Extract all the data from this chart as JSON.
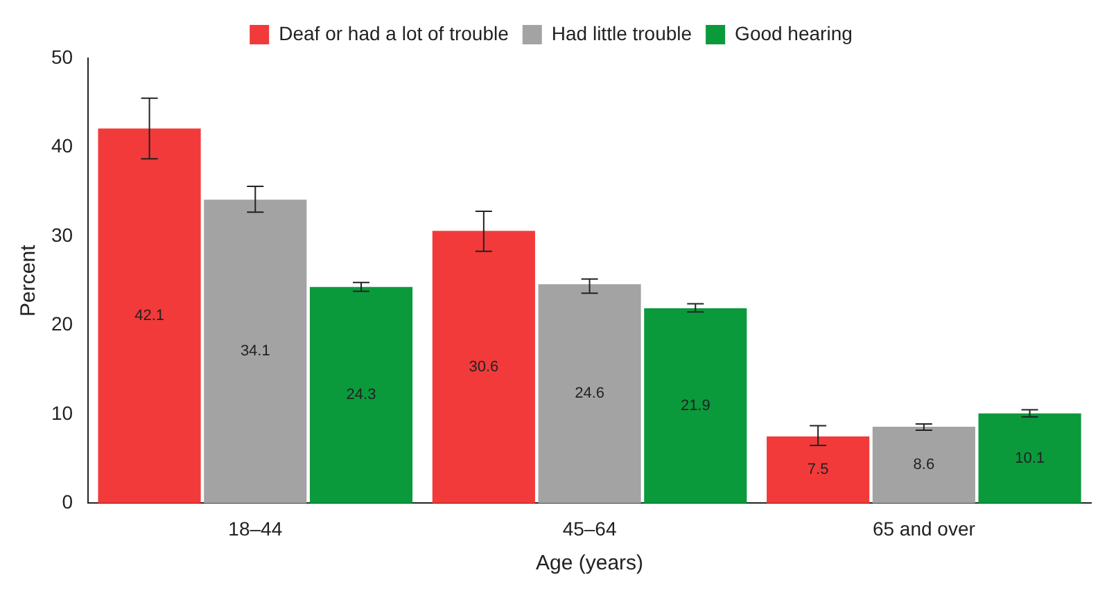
{
  "chart_data": {
    "type": "bar",
    "xlabel": "Age (years)",
    "ylabel": "Percent",
    "categories": [
      "18–44",
      "45–64",
      "65 and over"
    ],
    "series": [
      {
        "name": "Deaf or had a lot of trouble",
        "color": "#f23a3a",
        "values": [
          42.1,
          30.6,
          7.5
        ],
        "errors": [
          [
            38.7,
            45.5
          ],
          [
            28.3,
            32.8
          ],
          [
            6.5,
            8.7
          ]
        ]
      },
      {
        "name": "Had little trouble",
        "color": "#a3a3a3",
        "values": [
          34.1,
          24.6,
          8.6
        ],
        "errors": [
          [
            32.7,
            35.6
          ],
          [
            23.6,
            25.2
          ],
          [
            8.2,
            8.9
          ]
        ]
      },
      {
        "name": "Good hearing",
        "color": "#0a9a3c",
        "values": [
          24.3,
          21.9,
          10.1
        ],
        "errors": [
          [
            23.8,
            24.8
          ],
          [
            21.5,
            22.4
          ],
          [
            9.7,
            10.5
          ]
        ]
      }
    ],
    "ylim": [
      0,
      50
    ],
    "yticks": [
      0,
      10,
      20,
      30,
      40,
      50
    ],
    "grid": false,
    "legend": "top",
    "data_labels": true
  }
}
